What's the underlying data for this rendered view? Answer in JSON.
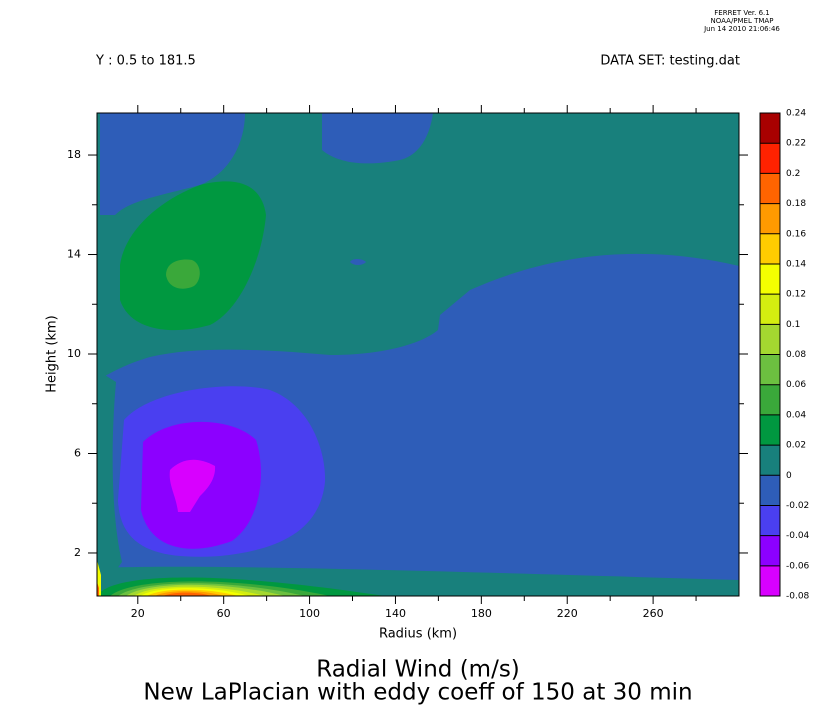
{
  "chart_data": {
    "type": "contour",
    "title": "Radial Wind (m/s)",
    "subtitle": "New LaPlacian with eddy coeff of 150 at 30 min",
    "header_left": "Y : 0.5 to 181.5",
    "header_right": "DATA SET: testing.dat",
    "stamp": [
      "FERRET Ver. 6.1",
      "NOAA/PMEL TMAP",
      "Jun 14 2010 21:06:46"
    ],
    "x_label": "Radius (km)",
    "y_label": "Height (km)",
    "xlim": [
      1,
      300
    ],
    "xticks": [
      20,
      60,
      100,
      140,
      180,
      220,
      260
    ],
    "xminorticks": [
      40,
      80,
      120,
      160,
      200,
      240,
      280
    ],
    "ylim": [
      0.27,
      19.69
    ],
    "yticks": [
      2,
      6,
      10,
      14,
      18
    ],
    "yminorticks": [
      4,
      8,
      12,
      16
    ],
    "levels": [
      -0.08,
      -0.06,
      -0.04,
      -0.02,
      0,
      0.02,
      0.04,
      0.06,
      0.08,
      0.1,
      0.12,
      0.14,
      0.16,
      0.18,
      0.2,
      0.22,
      0.24
    ],
    "colors": [
      "#d800ff",
      "#8c00ff",
      "#4a3ff0",
      "#2e5db8",
      "#18807c",
      "#009840",
      "#3aa83a",
      "#6cc040",
      "#a4d830",
      "#d4ee10",
      "#f4ff00",
      "#ffcc00",
      "#ff9a00",
      "#ff6400",
      "#ff2200",
      "#a80000"
    ]
  }
}
